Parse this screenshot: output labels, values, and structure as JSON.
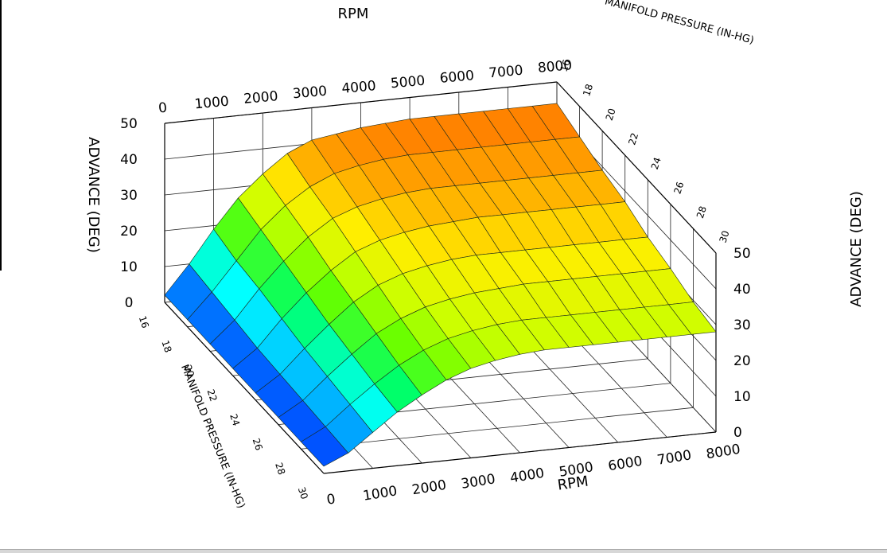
{
  "chart_data": {
    "type": "surface3d",
    "title": "",
    "rpm_axis": {
      "label": "RPM",
      "ticks": [
        0,
        1000,
        2000,
        3000,
        4000,
        5000,
        6000,
        7000,
        8000
      ],
      "range": [
        0,
        8000
      ]
    },
    "pressure_axis": {
      "label": "MANIFOLD PRESSURE (IN-HG)",
      "label_near": "MANIFOLD PRESSURE (IN-HG)",
      "ticks": [
        16,
        18,
        20,
        22,
        24,
        26,
        28,
        30
      ],
      "range": [
        16,
        30
      ]
    },
    "advance_axis": {
      "label": "ADVANCE (DEG)",
      "ticks": [
        0,
        10,
        20,
        30,
        40,
        50
      ],
      "range": [
        0,
        50
      ]
    },
    "grid": true,
    "rpm_grid": [
      0,
      500,
      1000,
      1500,
      2000,
      2500,
      3000,
      3500,
      4000,
      4500,
      5000,
      5500,
      6000,
      6500,
      7000,
      7500,
      8000
    ],
    "pressure_grid": [
      16,
      18,
      20,
      22,
      24,
      26,
      28,
      30
    ],
    "advance_deg": [
      [
        2,
        10,
        19,
        27,
        33,
        38,
        41,
        42,
        43,
        43.5,
        44,
        44,
        44,
        44,
        44,
        44,
        44
      ],
      [
        2,
        9,
        17,
        25,
        31,
        35.5,
        38.5,
        40,
        41,
        41.5,
        41.5,
        41.5,
        41.5,
        41.5,
        41.5,
        41.5,
        41.5
      ],
      [
        2,
        8,
        16,
        23,
        29,
        33.5,
        36,
        37.5,
        38.5,
        39,
        39,
        39,
        39,
        39,
        39,
        39,
        39
      ],
      [
        2,
        7,
        14.5,
        21,
        26.5,
        31,
        33.5,
        35,
        36,
        36.5,
        37,
        37,
        37,
        37,
        37,
        37,
        37
      ],
      [
        2,
        6.5,
        13,
        19,
        24.5,
        28.5,
        31,
        32.5,
        33.5,
        34,
        34,
        34,
        34,
        34,
        34,
        34,
        34
      ],
      [
        2,
        6,
        12,
        17.5,
        22.5,
        26,
        28.5,
        30,
        31,
        31.5,
        32,
        32,
        32,
        32,
        32,
        32,
        32
      ],
      [
        2,
        5.5,
        11,
        16,
        20.5,
        24,
        26.5,
        28,
        29,
        29.5,
        29.5,
        29.5,
        29.5,
        29.5,
        29.5,
        29.5,
        29.5
      ],
      [
        2,
        5,
        10,
        15,
        19,
        22.5,
        25,
        26.5,
        27.5,
        28,
        28,
        28,
        28,
        28,
        28,
        28,
        28
      ]
    ],
    "colormap": [
      "#0033ff",
      "#0099ff",
      "#00ffff",
      "#00ff66",
      "#66ff00",
      "#ccff00",
      "#ffee00",
      "#ffaa00",
      "#ff7700"
    ]
  }
}
